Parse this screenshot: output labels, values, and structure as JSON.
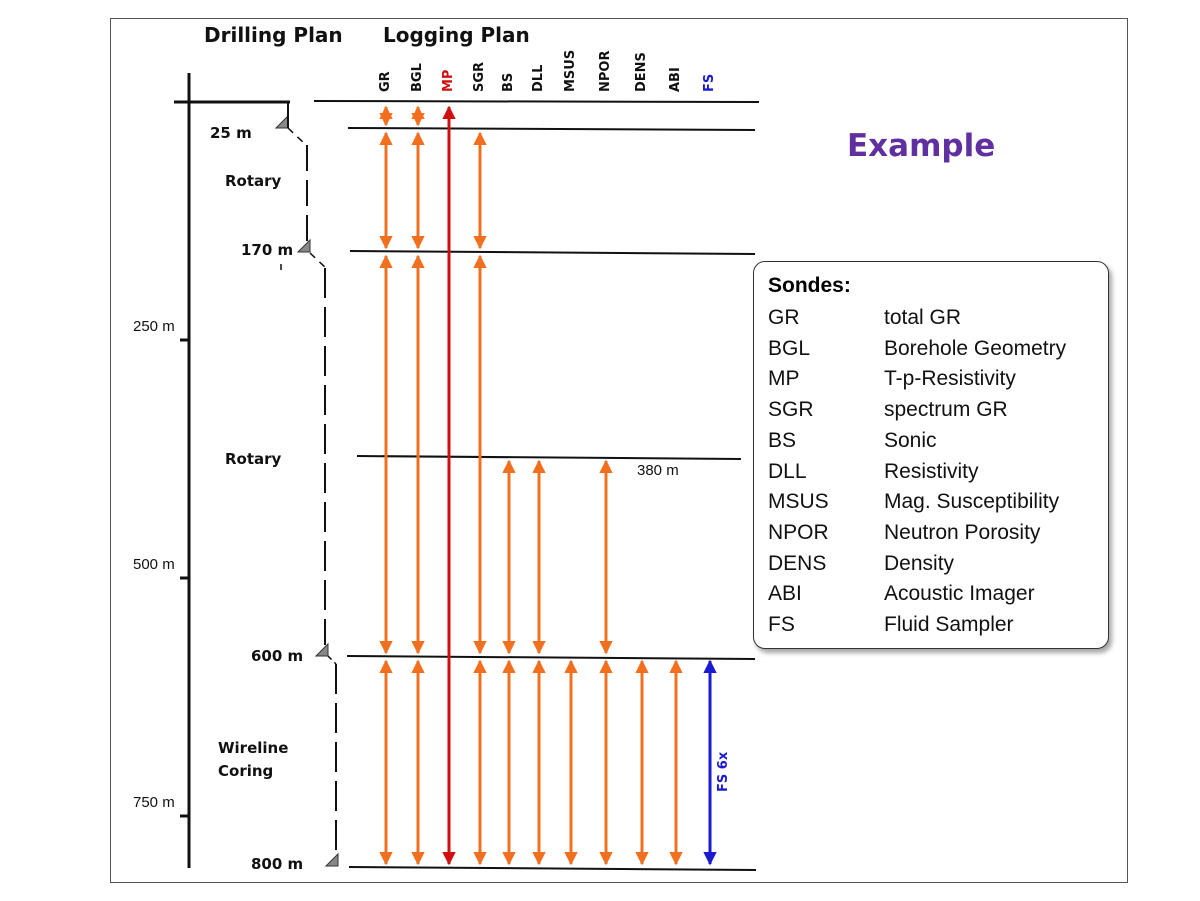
{
  "headers": {
    "drilling_plan": "Drilling Plan",
    "logging_plan": "Logging Plan"
  },
  "example_label": "Example",
  "columns": [
    {
      "code": "GR",
      "color": "#111111"
    },
    {
      "code": "BGL",
      "color": "#111111"
    },
    {
      "code": "MP",
      "color": "#d01010"
    },
    {
      "code": "SGR",
      "color": "#111111"
    },
    {
      "code": "BS",
      "color": "#111111"
    },
    {
      "code": "DLL",
      "color": "#111111"
    },
    {
      "code": "MSUS",
      "color": "#111111"
    },
    {
      "code": "NPOR",
      "color": "#111111"
    },
    {
      "code": "DENS",
      "color": "#111111"
    },
    {
      "code": "ABI",
      "color": "#111111"
    },
    {
      "code": "FS",
      "color": "#1a1ad0"
    }
  ],
  "depth_scale": [
    "250 m",
    "500 m",
    "750 m"
  ],
  "casing_depths": [
    "25 m",
    "170 m",
    "600 m",
    "800 m"
  ],
  "drilling_sections": [
    "Rotary",
    "Rotary",
    "Wireline Coring"
  ],
  "logging_depth_label": "380 m",
  "fs_label": "FS 6x",
  "colors": {
    "orange_arrow": "#f07020",
    "mp_arrow": "#d01010",
    "fs_arrow": "#1a1ad0",
    "example": "#6030a0"
  },
  "sondes": {
    "title": "Sondes:",
    "items": [
      {
        "code": "GR",
        "desc": "total GR"
      },
      {
        "code": "BGL",
        "desc": "Borehole Geometry"
      },
      {
        "code": "MP",
        "desc": "T-p-Resistivity"
      },
      {
        "code": "SGR",
        "desc": "spectrum GR"
      },
      {
        "code": "BS",
        "desc": "Sonic"
      },
      {
        "code": "DLL",
        "desc": "Resistivity"
      },
      {
        "code": "MSUS",
        "desc": "Mag. Susceptibility"
      },
      {
        "code": "NPOR",
        "desc": "Neutron Porosity"
      },
      {
        "code": "DENS",
        "desc": "Density"
      },
      {
        "code": "ABI",
        "desc": "Acoustic Imager"
      },
      {
        "code": "FS",
        "desc": "Fluid Sampler"
      }
    ]
  }
}
